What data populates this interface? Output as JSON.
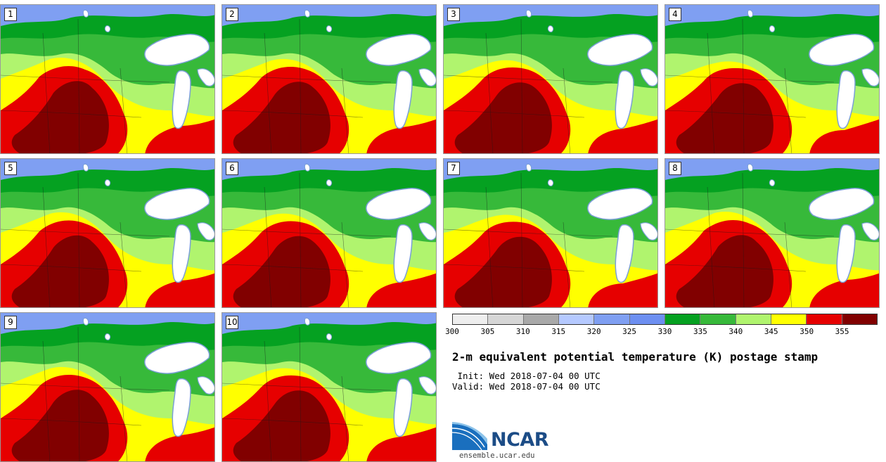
{
  "panels": [
    {
      "label": "1"
    },
    {
      "label": "2"
    },
    {
      "label": "3"
    },
    {
      "label": "4"
    },
    {
      "label": "5"
    },
    {
      "label": "6"
    },
    {
      "label": "7"
    },
    {
      "label": "8"
    },
    {
      "label": "9"
    },
    {
      "label": "10"
    }
  ],
  "colorbar": {
    "ticks": [
      "300",
      "305",
      "310",
      "315",
      "320",
      "325",
      "330",
      "335",
      "340",
      "345",
      "350",
      "355"
    ],
    "colors": [
      "#eeeeee",
      "#d6d6d6",
      "#a9a9a9",
      "#b5c9ff",
      "#7f9ff2",
      "#6d8ff1",
      "#05a121",
      "#37b93a",
      "#b0f46e",
      "#ffff00",
      "#e60000",
      "#810000"
    ]
  },
  "title": "2-m equivalent potential temperature (K) postage stamp",
  "init_line": " Init: Wed 2018-07-04 00 UTC",
  "valid_line": "Valid: Wed 2018-07-04 00 UTC",
  "logo": {
    "text": "NCAR",
    "url": "ensemble.ucar.edu"
  }
}
